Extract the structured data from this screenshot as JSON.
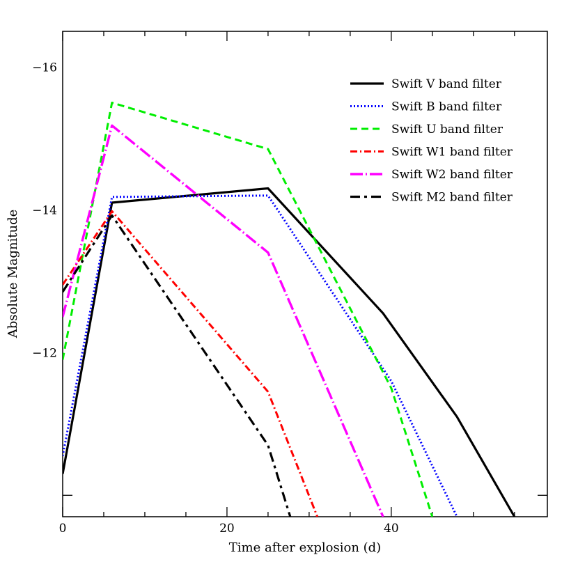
{
  "chart_data": {
    "type": "line",
    "xlabel": "Time after explosion (d)",
    "ylabel": "Absolute Magnitude",
    "xlim": [
      0,
      59
    ],
    "ylim": [
      -9.7,
      -16.5
    ],
    "y_inverted": true,
    "legend_position": "top-right",
    "grid": false,
    "x_ticks": [
      0,
      20,
      40
    ],
    "x_tick_labels": [
      "0",
      "20",
      "40"
    ],
    "y_ticks": [
      -16,
      -14,
      -12
    ],
    "y_tick_labels": [
      "−16",
      "−14",
      "−12"
    ],
    "series": [
      {
        "name": "Swift V band filter",
        "color": "#000000",
        "style": "solid",
        "x": [
          0,
          6,
          25,
          39,
          48,
          55
        ],
        "y": [
          -10.3,
          -14.1,
          -14.3,
          -12.55,
          -11.1,
          -9.7
        ]
      },
      {
        "name": "Swift B band filter",
        "color": "#0000ff",
        "style": "dotted",
        "x": [
          0,
          6,
          25,
          40,
          48
        ],
        "y": [
          -10.55,
          -14.18,
          -14.2,
          -11.6,
          -9.7
        ]
      },
      {
        "name": "Swift U band filter",
        "color": "#00ee00",
        "style": "dashed",
        "x": [
          0,
          6,
          25,
          40,
          45
        ],
        "y": [
          -11.9,
          -15.5,
          -14.85,
          -11.5,
          -9.7
        ]
      },
      {
        "name": "Swift W1 band filter",
        "color": "#ff0000",
        "style": "dashdot",
        "x": [
          0,
          6,
          25,
          31
        ],
        "y": [
          -12.95,
          -13.98,
          -11.45,
          -9.7
        ]
      },
      {
        "name": "Swift W2 band filter",
        "color": "#ff00ff",
        "style": "longdashdot",
        "x": [
          0,
          6,
          25,
          39
        ],
        "y": [
          -12.5,
          -15.18,
          -13.4,
          -9.7
        ]
      },
      {
        "name": "Swift M2 band filter",
        "color": "#000000",
        "style": "longdash",
        "x": [
          0,
          6,
          25,
          27.7
        ],
        "y": [
          -12.85,
          -13.92,
          -10.7,
          -9.7
        ]
      }
    ]
  }
}
